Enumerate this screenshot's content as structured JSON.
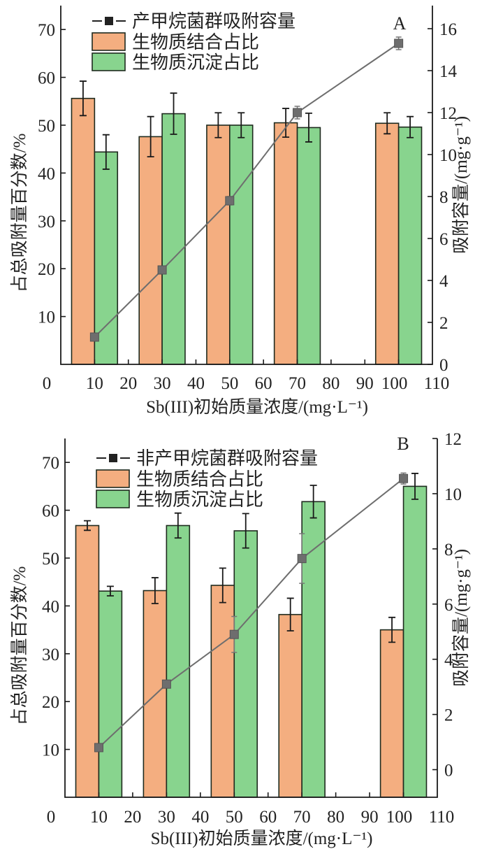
{
  "chart_data": [
    {
      "type": "bar",
      "panel_label": "A",
      "xlabel": "Sb(III)初始质量浓度/(mg·L⁻¹)",
      "ylabel": "占总吸附量百分数/%",
      "ylabel_right": "吸附容量/(mg·g⁻¹)",
      "xlim": [
        0,
        110
      ],
      "ylim": [
        0,
        75
      ],
      "ylim_right": [
        0,
        17.1
      ],
      "x_ticks": [
        0,
        10,
        20,
        30,
        40,
        50,
        60,
        70,
        80,
        90,
        100,
        110
      ],
      "y_ticks": [
        10,
        20,
        30,
        40,
        50,
        60,
        70
      ],
      "y_ticks_right": [
        0,
        2,
        4,
        6,
        8,
        10,
        12,
        14,
        16
      ],
      "x": [
        10,
        30,
        50,
        70,
        100
      ],
      "legend_position": "top-left",
      "series": [
        {
          "name": "产甲烷菌群吸附容量",
          "kind": "line",
          "axis": "right",
          "color": "#6e6e6e",
          "values": [
            1.3,
            4.5,
            7.8,
            12.0,
            15.3
          ],
          "errors": [
            0.15,
            0.15,
            0.2,
            0.3,
            0.3
          ]
        },
        {
          "name": "生物质结合占比",
          "kind": "bar",
          "axis": "left",
          "color": "#f4ae80",
          "values": [
            55.6,
            47.6,
            50.0,
            50.5,
            50.4
          ],
          "errors": [
            3.6,
            4.2,
            2.6,
            3.0,
            2.2
          ]
        },
        {
          "name": "生物质沉淀占比",
          "kind": "bar",
          "axis": "left",
          "color": "#88d48e",
          "values": [
            44.4,
            52.4,
            50.0,
            49.5,
            49.6
          ],
          "errors": [
            3.6,
            4.3,
            2.6,
            3.0,
            2.2
          ]
        }
      ]
    },
    {
      "type": "bar",
      "panel_label": "B",
      "xlabel": "Sb(III)初始质量浓度/(mg·L⁻¹)",
      "ylabel": "占总吸附量百分数/%",
      "ylabel_right": "吸附容量/(mg·g⁻¹)",
      "xlim": [
        0,
        110
      ],
      "ylim": [
        0,
        75
      ],
      "ylim_right": [
        -1,
        12
      ],
      "x_ticks": [
        0,
        10,
        20,
        30,
        40,
        50,
        60,
        70,
        80,
        90,
        100,
        110
      ],
      "y_ticks": [
        10,
        20,
        30,
        40,
        50,
        60,
        70
      ],
      "y_ticks_right": [
        0,
        2,
        4,
        6,
        8,
        10,
        12
      ],
      "x": [
        10,
        30,
        50,
        70,
        100
      ],
      "legend_position": "top-left",
      "series": [
        {
          "name": "非产甲烷菌群吸附容量",
          "kind": "line",
          "axis": "right",
          "color": "#6e6e6e",
          "values": [
            0.8,
            3.1,
            4.9,
            7.65,
            10.55
          ],
          "errors": [
            0.1,
            0.1,
            0.65,
            0.9,
            0.2
          ]
        },
        {
          "name": "生物质结合占比",
          "kind": "bar",
          "axis": "left",
          "color": "#f4ae80",
          "values": [
            56.8,
            43.2,
            44.3,
            38.2,
            35.0
          ],
          "errors": [
            1.0,
            2.7,
            3.6,
            3.4,
            2.6
          ]
        },
        {
          "name": "生物质沉淀占比",
          "kind": "bar",
          "axis": "left",
          "color": "#88d48e",
          "values": [
            43.1,
            56.8,
            55.7,
            61.8,
            65.0
          ],
          "errors": [
            1.0,
            2.6,
            3.6,
            3.4,
            2.7
          ]
        }
      ]
    }
  ]
}
